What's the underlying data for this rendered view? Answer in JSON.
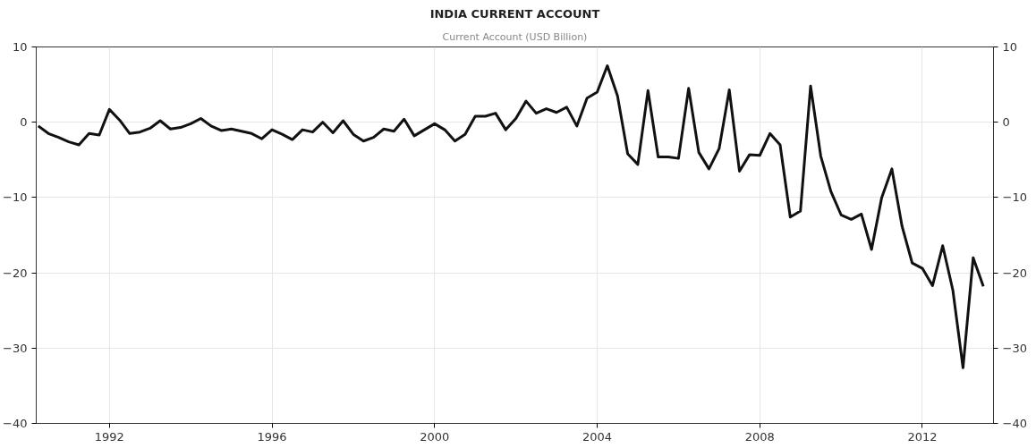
{
  "chart_data": {
    "type": "line",
    "title": "INDIA CURRENT ACCOUNT",
    "subtitle": "Current Account (USD Billion)",
    "x": [
      1990.25,
      1990.5,
      1990.75,
      1991.0,
      1991.25,
      1991.5,
      1991.75,
      1992.0,
      1992.25,
      1992.5,
      1992.75,
      1993.0,
      1993.25,
      1993.5,
      1993.75,
      1994.0,
      1994.25,
      1994.5,
      1994.75,
      1995.0,
      1995.25,
      1995.5,
      1995.75,
      1996.0,
      1996.25,
      1996.5,
      1996.75,
      1997.0,
      1997.25,
      1997.5,
      1997.75,
      1998.0,
      1998.25,
      1998.5,
      1998.75,
      1999.0,
      1999.25,
      1999.5,
      1999.75,
      2000.0,
      2000.25,
      2000.5,
      2000.75,
      2001.0,
      2001.25,
      2001.5,
      2001.75,
      2002.0,
      2002.25,
      2002.5,
      2002.75,
      2003.0,
      2003.25,
      2003.5,
      2003.75,
      2004.0,
      2004.25,
      2004.5,
      2004.75,
      2005.0,
      2005.25,
      2005.5,
      2005.75,
      2006.0,
      2006.25,
      2006.5,
      2006.75,
      2007.0,
      2007.25,
      2007.5,
      2007.75,
      2008.0,
      2008.25,
      2008.5,
      2008.75,
      2009.0,
      2009.25,
      2009.5,
      2009.75,
      2010.0,
      2010.25,
      2010.5,
      2010.75,
      2011.0,
      2011.25,
      2011.5,
      2011.75,
      2012.0,
      2012.25,
      2012.5,
      2012.75,
      2013.0,
      2013.25,
      2013.5
    ],
    "series": [
      {
        "color": "#111111",
        "values": [
          -0.5,
          -1.5,
          -2.0,
          -2.6,
          -3.0,
          -1.5,
          -1.7,
          1.7,
          0.3,
          -1.5,
          -1.3,
          -0.8,
          0.2,
          -0.9,
          -0.7,
          -0.2,
          0.5,
          -0.5,
          -1.1,
          -0.9,
          -1.2,
          -1.5,
          -2.2,
          -1.0,
          -1.6,
          -2.3,
          -1.0,
          -1.3,
          0.0,
          -1.4,
          0.2,
          -1.6,
          -2.5,
          -2.0,
          -0.9,
          -1.2,
          0.4,
          -1.8,
          -1.0,
          -0.2,
          -1.0,
          -2.5,
          -1.6,
          0.8,
          0.8,
          1.2,
          -1.0,
          0.5,
          2.8,
          1.2,
          1.8,
          1.3,
          2.0,
          -0.5,
          3.2,
          4.0,
          7.5,
          3.5,
          -4.2,
          -5.6,
          4.2,
          -4.6,
          -4.6,
          -4.8,
          4.5,
          -4.0,
          -6.2,
          -3.5,
          4.3,
          -6.5,
          -4.3,
          -4.4,
          -1.5,
          -3.0,
          -12.6,
          -11.8,
          4.8,
          -4.5,
          -9.2,
          -12.3,
          -12.9,
          -12.2,
          -16.9,
          -10.0,
          -6.2,
          -13.8,
          -18.7,
          -19.4,
          -21.7,
          -16.4,
          -22.3,
          -32.6,
          -18.0,
          -21.8
        ]
      }
    ],
    "xlim": [
      1990.2,
      2013.75
    ],
    "xticks": [
      1992,
      1996,
      2000,
      2004,
      2008,
      2012
    ],
    "ylim": [
      -40,
      10
    ],
    "yticks": [
      -40,
      -30,
      -20,
      -10,
      0,
      10
    ],
    "y2lim": [
      -40,
      10
    ],
    "y2ticks": [
      -40,
      -30,
      -20,
      -10,
      0,
      10
    ],
    "grid": true,
    "marker": "none",
    "line_style": "solid"
  }
}
